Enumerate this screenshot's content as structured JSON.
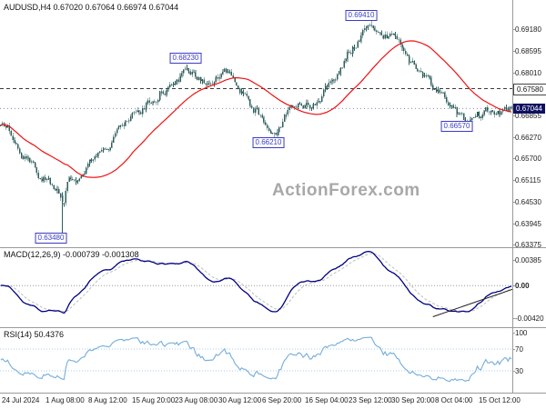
{
  "header": {
    "title": "AUDUSD,H4 0.67020 0.67064 0.66974 0.67044"
  },
  "watermark": "ActionForex.com",
  "panels": {
    "macd": {
      "label": "MACD(12,26,9) -0.000739 -0.001308"
    },
    "rsi": {
      "label": "RSI(14) 50.4376"
    }
  },
  "price_axis": {
    "level_box": "0.67580",
    "current_box": "0.67044"
  },
  "colors": {
    "candle": "#2f5e5c",
    "ma_line": "#ee1111",
    "macd_line": "#000082",
    "macd_signal": "#bdbdbd",
    "rsi_line": "#74add9",
    "rsi_levels": "#aaccee",
    "annotation": "#3b3bc4",
    "level_line": "#3a3a3a",
    "current_line": "#5050a0",
    "current_box_bg": "#101060",
    "axis_line": "#9a9a9a",
    "text": "#1a1a1a",
    "watermark": "#a8a8a8",
    "trendline": "#222222"
  },
  "annotations": [
    {
      "label": "0.69410",
      "x": 0.705,
      "price": 0.6941,
      "dy": -6
    },
    {
      "label": "0.68230",
      "x": 0.362,
      "price": 0.6823,
      "dy": -7
    },
    {
      "label": "0.66210",
      "x": 0.524,
      "price": 0.6621,
      "dy": 4
    },
    {
      "label": "0.66570",
      "x": 0.892,
      "price": 0.6657,
      "dy": 0
    },
    {
      "label": "0.63480",
      "x": 0.1,
      "price": 0.6348,
      "dy": -3
    }
  ],
  "chart_data": {
    "type": "candlestick",
    "symbol": "AUDUSD",
    "timeframe": "H4",
    "ohlc": {
      "open": 0.6702,
      "high": 0.67064,
      "low": 0.66974,
      "close": 0.67044
    },
    "ylim": [
      0.633,
      0.6997
    ],
    "y_ticks": [
      "0.69180",
      "0.68595",
      "0.68010",
      "0.66855",
      "0.66270",
      "0.65700",
      "0.65115",
      "0.64530",
      "0.63945",
      "0.63375"
    ],
    "x_ticks": [
      "24 Jul 2024",
      "1 Aug 08:00",
      "8 Aug 12:00",
      "15 Aug 20:00",
      "23 Aug 08:00",
      "30 Aug 12:00",
      "6 Sep 20:00",
      "16 Sep 04:00",
      "23 Sep 12:00",
      "30 Sep 20:00",
      "8 Oct 04:00",
      "15 Oct 12:00"
    ],
    "key_levels": {
      "dashed_level": 0.6758,
      "current_price": 0.67044,
      "swing_high_1": 0.6941,
      "swing_high_2": 0.6823,
      "swing_low_1": 0.6621,
      "swing_low_2": 0.6657,
      "spike_low": 0.6348
    },
    "price_path": [
      [
        0.0,
        0.665
      ],
      [
        0.015,
        0.6642
      ],
      [
        0.035,
        0.661
      ],
      [
        0.055,
        0.6572
      ],
      [
        0.075,
        0.653
      ],
      [
        0.095,
        0.6512
      ],
      [
        0.115,
        0.648
      ],
      [
        0.122,
        0.6445
      ],
      [
        0.132,
        0.6515
      ],
      [
        0.155,
        0.6528
      ],
      [
        0.18,
        0.656
      ],
      [
        0.205,
        0.66
      ],
      [
        0.235,
        0.6645
      ],
      [
        0.265,
        0.668
      ],
      [
        0.295,
        0.6722
      ],
      [
        0.325,
        0.6762
      ],
      [
        0.35,
        0.679
      ],
      [
        0.365,
        0.6815
      ],
      [
        0.385,
        0.6785
      ],
      [
        0.405,
        0.6772
      ],
      [
        0.425,
        0.68
      ],
      [
        0.44,
        0.6805
      ],
      [
        0.46,
        0.6772
      ],
      [
        0.48,
        0.6732
      ],
      [
        0.5,
        0.67
      ],
      [
        0.52,
        0.6665
      ],
      [
        0.535,
        0.6635
      ],
      [
        0.555,
        0.6668
      ],
      [
        0.575,
        0.6712
      ],
      [
        0.595,
        0.6718
      ],
      [
        0.61,
        0.67
      ],
      [
        0.63,
        0.6742
      ],
      [
        0.655,
        0.6792
      ],
      [
        0.68,
        0.6855
      ],
      [
        0.705,
        0.69
      ],
      [
        0.725,
        0.6925
      ],
      [
        0.74,
        0.689
      ],
      [
        0.76,
        0.6905
      ],
      [
        0.78,
        0.6895
      ],
      [
        0.8,
        0.6845
      ],
      [
        0.822,
        0.6798
      ],
      [
        0.845,
        0.6762
      ],
      [
        0.868,
        0.6725
      ],
      [
        0.89,
        0.669
      ],
      [
        0.915,
        0.6668
      ],
      [
        0.935,
        0.6682
      ],
      [
        0.958,
        0.6698
      ],
      [
        0.978,
        0.6692
      ],
      [
        1.0,
        0.6704
      ]
    ],
    "indicators": {
      "ma": {
        "type": "sma",
        "period": 40
      },
      "macd": {
        "fast": 12,
        "slow": 26,
        "signal": 9,
        "value": -0.000739,
        "signal_value": -0.001308,
        "axis_ticks": [
          "0.00385",
          "0.00",
          "-0.00420"
        ]
      },
      "rsi": {
        "period": 14,
        "value": 50.4376,
        "levels": [
          70,
          30
        ],
        "axis_ticks": [
          "100",
          "70",
          "30"
        ]
      }
    },
    "macd_trendline": {
      "x1": 0.845,
      "v1": -0.0042,
      "x2": 1.0,
      "v2": -0.0005
    }
  }
}
